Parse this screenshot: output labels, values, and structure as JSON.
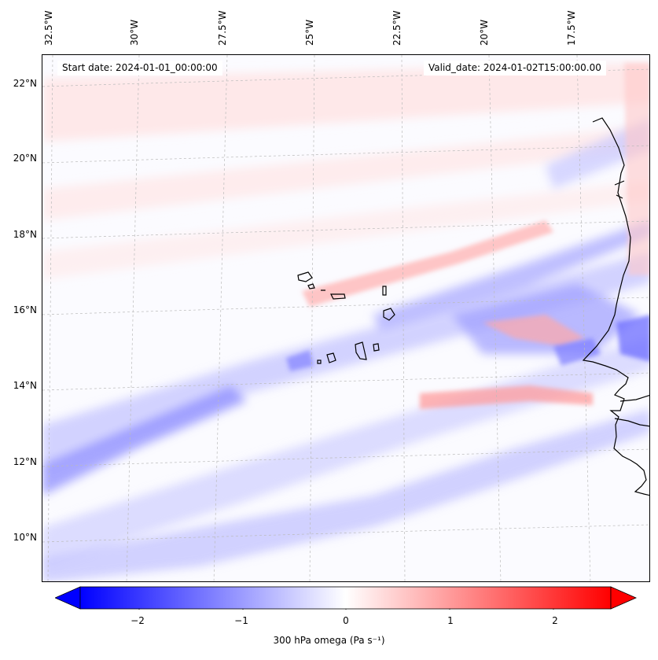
{
  "map": {
    "start_date": "Start date: 2024-01-01_00:00:00",
    "valid_date": "Valid_date: 2024-01-02T15:00:00.00",
    "lon_labels": [
      "32.5°W",
      "30°W",
      "27.5°W",
      "25°W",
      "22.5°W",
      "20°W",
      "17.5°W"
    ],
    "lat_labels": [
      "22°N",
      "20°N",
      "18°N",
      "16°N",
      "14°N",
      "12°N",
      "10°N"
    ],
    "islands": [
      "Santo Antão",
      "São Vicente",
      "São Nicolau",
      "Sal",
      "Boa Vista",
      "Maio",
      "Santiago",
      "Fogo",
      "Brava"
    ],
    "coastline": "West Africa (Mauritania, Senegal, Gambia, Guinea-Bissau)",
    "grid": true
  },
  "colorbar": {
    "ticks": [
      "−2",
      "−1",
      "0",
      "1",
      "2"
    ],
    "label": "300 hPa omega (Pa s⁻¹)",
    "colormap": "bwr",
    "range": [
      -2.6,
      2.6
    ],
    "extend": "both"
  },
  "colors": {
    "negative": "#0000ff",
    "zero": "#ffffff",
    "positive": "#ff0000"
  }
}
